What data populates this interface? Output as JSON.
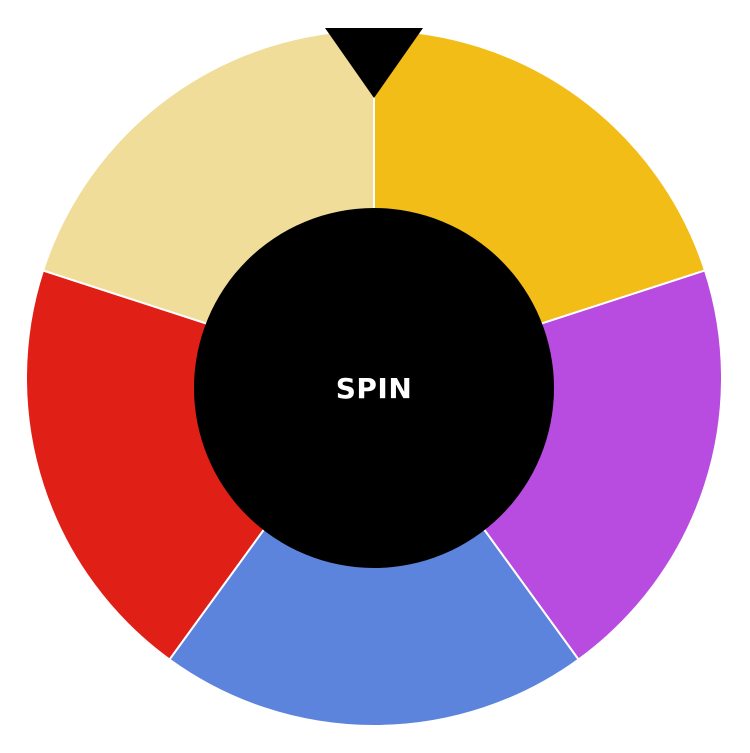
{
  "wheel": {
    "segments": [
      {
        "name": "segment-yellow",
        "color": "#f3bd17"
      },
      {
        "name": "segment-purple",
        "color": "#b84be0"
      },
      {
        "name": "segment-blue",
        "color": "#5d84dc"
      },
      {
        "name": "segment-red",
        "color": "#e01f17"
      },
      {
        "name": "segment-beige",
        "color": "#f0dd9a"
      }
    ],
    "divider_color": "#ffffff",
    "pointer": {
      "icon": "pointer-triangle-icon",
      "color": "#000000"
    }
  },
  "spin_button": {
    "label": "SPIN",
    "background": "#000000",
    "text_color": "#ffffff"
  }
}
